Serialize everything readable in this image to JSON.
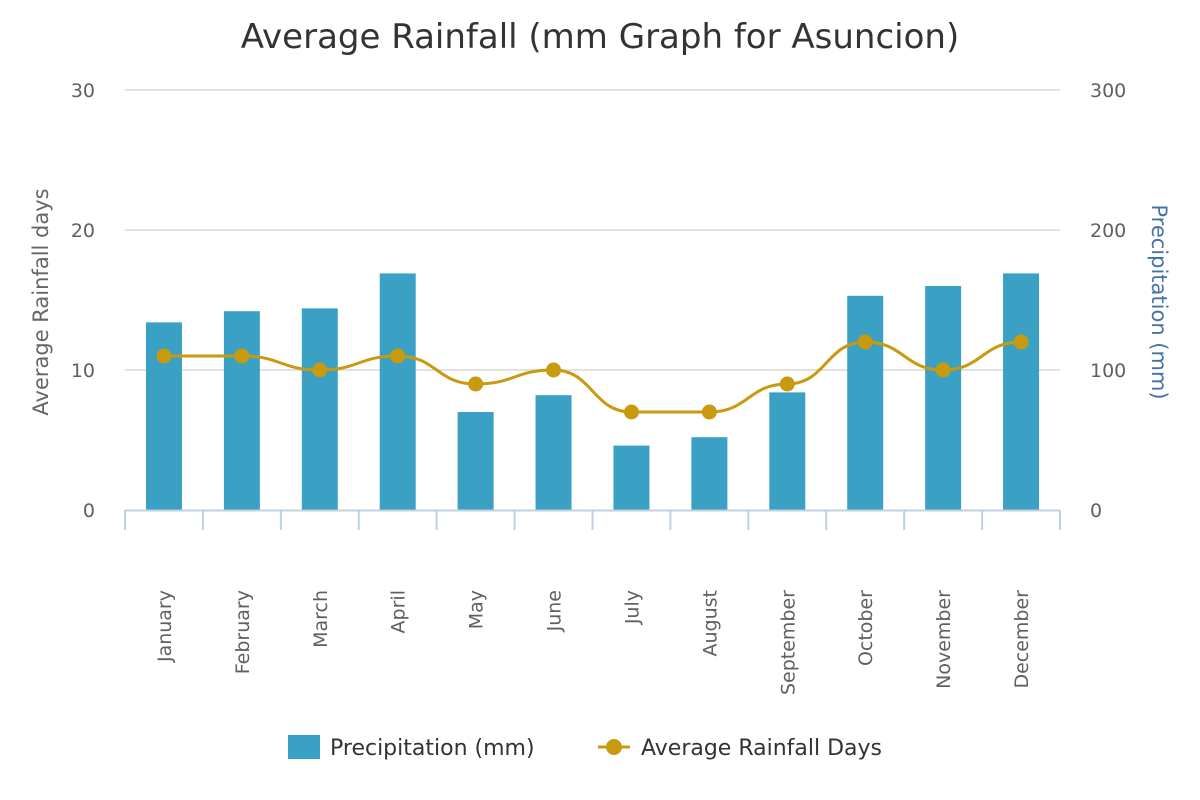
{
  "chart_data": {
    "type": "bar",
    "title": "Average Rainfall (mm Graph for Asuncion)",
    "categories": [
      "January",
      "February",
      "March",
      "April",
      "May",
      "June",
      "July",
      "August",
      "September",
      "October",
      "November",
      "December"
    ],
    "series": [
      {
        "name": "Precipitation (mm)",
        "type": "bar",
        "axis": "right",
        "color": "#3aa1c4",
        "values": [
          134,
          142,
          144,
          169,
          70,
          82,
          46,
          52,
          84,
          153,
          160,
          169
        ]
      },
      {
        "name": "Average Rainfall Days",
        "type": "line",
        "axis": "left",
        "color": "#c89a10",
        "values": [
          11,
          11,
          10,
          11,
          9,
          10,
          7,
          7,
          9,
          12,
          10,
          12
        ]
      }
    ],
    "y_left": {
      "label": "Average Rainfall days",
      "ylim": [
        0,
        30
      ],
      "ticks": [
        "0",
        "10",
        "20",
        "30"
      ]
    },
    "y_right": {
      "label": "Precipitation (mm)",
      "ylim": [
        0,
        300
      ],
      "ticks": [
        "0",
        "100",
        "200",
        "300"
      ]
    },
    "xlabel": "",
    "grid": true,
    "legend": "bottom-center"
  }
}
